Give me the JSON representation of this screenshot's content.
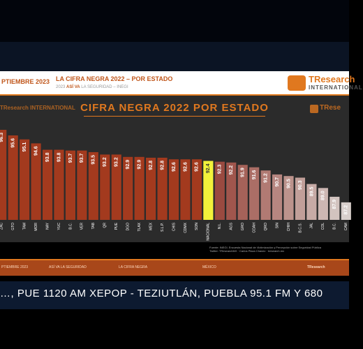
{
  "header": {
    "date": "PTIEMBRE 2023",
    "title": "LA CIFRA NEGRA 2022 – POR ESTADO",
    "subtitle_prefix": "2023",
    "subtitle_mid": "ASÍ VA",
    "subtitle_rest": "LA SEGURIDAD – INEGI",
    "logo_top": "TResearch",
    "logo_bottom": "INTERNATIONAL"
  },
  "watermark": {
    "left": "TResearch INTERNATIONAL",
    "right": "TRese"
  },
  "footer": {
    "item1": "PTIEMBRE 2023",
    "item2": "ASÍ VA LA SEGURIDAD",
    "item3": "LA CIFRA NEGRA",
    "item4": "MÉXICO",
    "logo": "TResearch"
  },
  "source": {
    "line1": "Fuente: INEGI. Encuesta Nacional de Victimización y Percepción sobre Seguridad Pública",
    "line2": "Twitter: TResearchMX · Carlos Plaza Chavez · tresearch.mx"
  },
  "ticker": {
    "text": "…, PUE  1120 AM XEPOP   -   TEZIUTLÁN, PUEBLA 95.1 FM Y 680"
  },
  "chart_data": {
    "type": "bar",
    "title": "CIFRA NEGRA 2022 POR ESTADO",
    "categories": [
      "ZAC",
      "GTO",
      "TAM",
      "MOR",
      "NAY",
      "YUC",
      "B.C.",
      "VER",
      "TAB",
      "QR",
      "PUE",
      "DGO",
      "TLAX",
      "MEX",
      "S.L.P.",
      "CHIS",
      "CDMX",
      "SON",
      "NACIONAL",
      "N.L.",
      "AGS",
      "GRO",
      "COAH",
      "QRO",
      "SIN",
      "CHIH",
      "B.C.S.",
      "JAL",
      "COL",
      "B.C.",
      "CAM"
    ],
    "values": [
      96.3,
      95.6,
      95.1,
      94.6,
      93.8,
      93.8,
      93.7,
      93.7,
      93.5,
      93.2,
      93.2,
      92.9,
      92.9,
      92.8,
      92.8,
      92.6,
      92.6,
      92.6,
      92.4,
      92.3,
      92.2,
      91.9,
      91.6,
      91.2,
      90.7,
      90.5,
      90.3,
      89.5,
      89.0,
      87.9,
      87.2
    ],
    "labels": [
      "96.3",
      "95.6",
      "95.1",
      "94.6",
      "93.8",
      "93.8",
      "93.7",
      "93.7",
      "93.5",
      "93.2",
      "93.2",
      "92.9",
      "92.9",
      "92.8",
      "92.8",
      "92.6",
      "92.6",
      "92.6",
      "92.4",
      "92.3",
      "92.2",
      "91.9",
      "91.6",
      "91.2",
      "90.7",
      "90.5",
      "90.3",
      "89.5",
      "89.0",
      "87.9",
      "87.2"
    ],
    "highlight": "NACIONAL",
    "colors": {
      "above": "#a33a1e",
      "highlight": "#f2f23a",
      "below_start": "#9a4a40",
      "below_end": "#d8cfcc"
    },
    "ylim": [
      85,
      97
    ]
  }
}
